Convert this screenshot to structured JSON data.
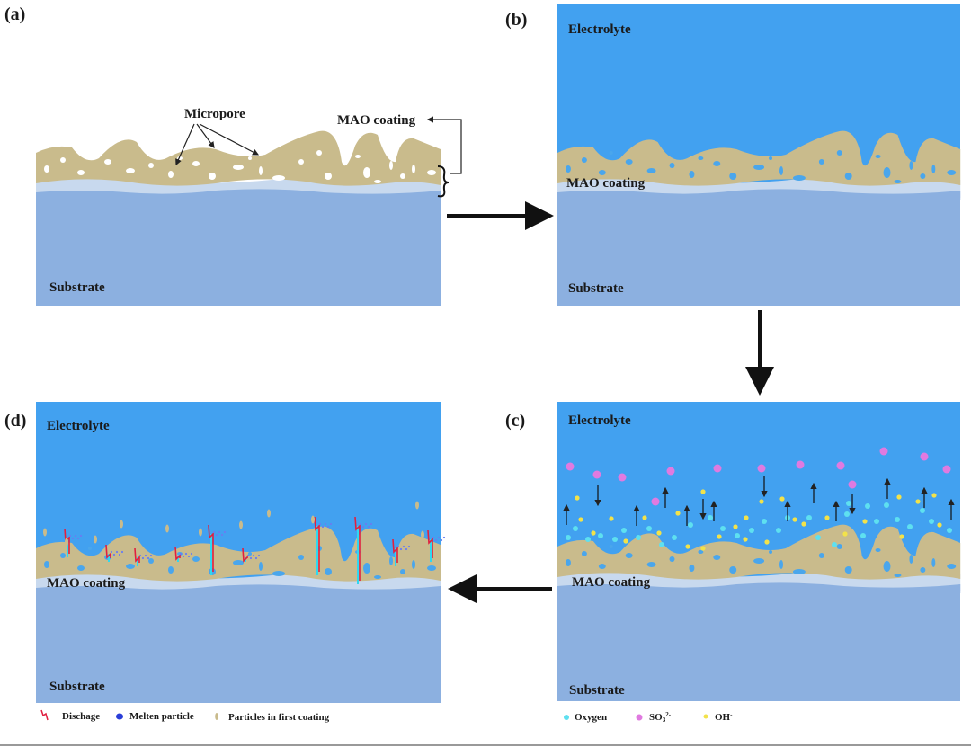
{
  "panels": {
    "a": {
      "label": "(a)",
      "micropore": "Micropore",
      "mao": "MAO coating",
      "substrate": "Substrate"
    },
    "b": {
      "label": "(b)",
      "electrolyte": "Electrolyte",
      "mao": "MAO coating",
      "substrate": "Substrate"
    },
    "c": {
      "label": "(c)",
      "electrolyte": "Electrolyte",
      "mao": "MAO coating",
      "substrate": "Substrate"
    },
    "d": {
      "label": "(d)",
      "electrolyte": "Electrolyte",
      "mao": "MAO coating",
      "substrate": "Substrate"
    }
  },
  "legend_d": [
    {
      "icon": "discharge-icon",
      "label": "Dischage"
    },
    {
      "icon": "melten-particle-icon",
      "label": "Melten particle"
    },
    {
      "icon": "first-coating-particle-icon",
      "label": "Particles in first coating"
    }
  ],
  "legend_c": [
    {
      "icon": "oxygen-icon",
      "label": "Oxygen"
    },
    {
      "icon": "so3-icon",
      "label": "SO",
      "sub": "3",
      "sup": "2-"
    },
    {
      "icon": "oh-icon",
      "label": "OH",
      "sup": "-"
    }
  ],
  "colors": {
    "electrolyte": "#42a1f0",
    "coating": "#c9bb8c",
    "interlayer": "#c8d9ee",
    "substrate": "#8cb0e0",
    "pore_a": "#ffffff",
    "pore": "#4aa6ec",
    "oxygen": "#5ee0f0",
    "so3": "#e07ae0",
    "oh": "#f2e24a",
    "discharge": "#e02040"
  }
}
